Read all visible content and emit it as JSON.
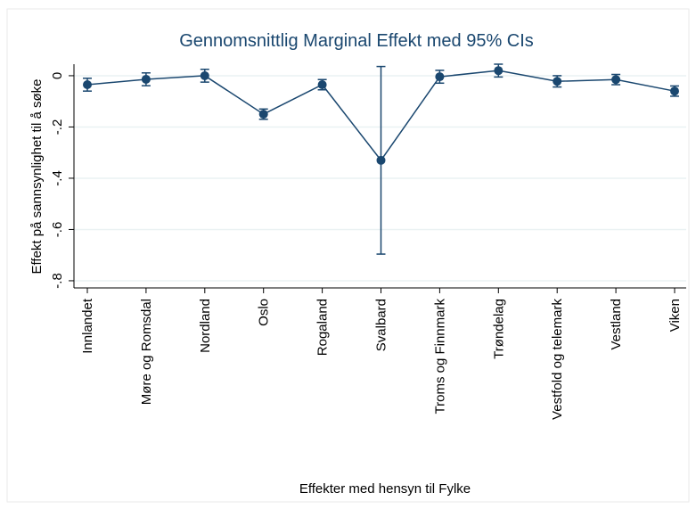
{
  "chart_data": {
    "type": "line",
    "title": "Gennomsnittlig Marginal Effekt med 95% CIs",
    "xlabel": "Effekter med hensyn til Fylke",
    "ylabel": "Effekt på sannsynlighet til å søke",
    "categories": [
      "Innlandet",
      "Møre og Romsdal",
      "Nordland",
      "Oslo",
      "Rogaland",
      "Svalbard",
      "Troms og Finnmark",
      "Trøndelag",
      "Vestfold og telemark",
      "Vestland",
      "Viken"
    ],
    "values": [
      -0.035,
      -0.014,
      0.0,
      -0.15,
      -0.035,
      -0.33,
      -0.004,
      0.02,
      -0.022,
      -0.015,
      -0.06
    ],
    "errors": [
      0.025,
      0.025,
      0.025,
      0.02,
      0.02,
      0.366,
      0.025,
      0.025,
      0.022,
      0.02,
      0.02
    ],
    "color": "#1a476f",
    "ylim": [
      -0.828,
      0.045
    ],
    "yticks": [
      0,
      {
        "value": -0.2,
        "label": "-.2"
      },
      {
        "value": -0.4,
        "label": "-.4"
      },
      {
        "value": -0.6,
        "label": "-.6"
      },
      {
        "value": -0.8,
        "label": "-.8"
      }
    ],
    "grid": true
  }
}
